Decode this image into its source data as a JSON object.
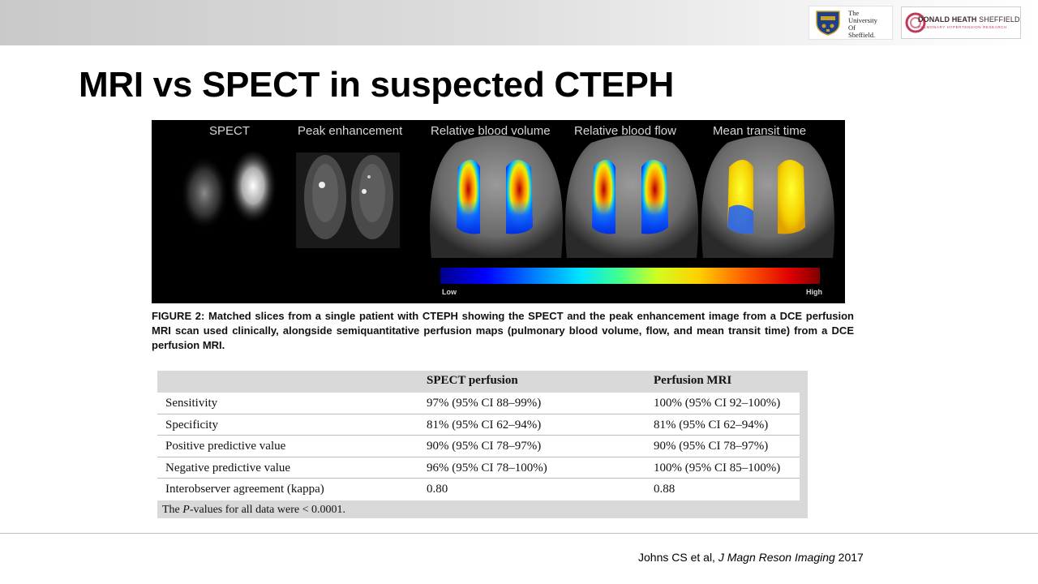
{
  "header": {
    "university_logo_text": "The\nUniversity\nOf\nSheffield.",
    "partner_logo_name_bold": "DONALD HEATH",
    "partner_logo_name_light": " SHEFFIELD",
    "partner_logo_subtitle": "PULMONARY HYPERTENSION RESEARCH"
  },
  "slide": {
    "title": "MRI vs SPECT in suspected CTEPH"
  },
  "figure": {
    "panels": [
      "SPECT",
      "Peak enhancement",
      "Relative blood volume",
      "Relative blood flow",
      "Mean transit time"
    ],
    "colorbar_low": "Low",
    "colorbar_high": "High",
    "caption": "FIGURE 2: Matched slices from a single patient with CTEPH showing the SPECT and the peak enhancement image from a DCE perfusion MRI scan used clinically, alongside semiquantitative perfusion maps (pulmonary blood volume, flow, and mean transit time) from a DCE perfusion MRI."
  },
  "table": {
    "headers": [
      "",
      "SPECT perfusion",
      "Perfusion MRI"
    ],
    "rows": [
      {
        "metric": "Sensitivity",
        "spect": "97% (95% CI 88–99%)",
        "mri": "100% (95% CI 92–100%)"
      },
      {
        "metric": "Specificity",
        "spect": "81% (95% CI 62–94%)",
        "mri": "81% (95% CI 62–94%)"
      },
      {
        "metric": "Positive predictive value",
        "spect": "90% (95% CI 78–97%)",
        "mri": "90% (95% CI 78–97%)"
      },
      {
        "metric": "Negative predictive value",
        "spect": "96% (95% CI 78–100%)",
        "mri": "100% (95% CI 85–100%)"
      },
      {
        "metric": "Interobserver agreement (kappa)",
        "spect": "0.80",
        "mri": "0.88"
      }
    ],
    "note_prefix": "The ",
    "note_italic": "P",
    "note_suffix": "-values for all data were < 0.0001."
  },
  "citation": {
    "authors": "Johns CS et al, ",
    "journal": "J Magn Reson Imaging",
    "year": " 2017"
  },
  "colors": {
    "accent_red": "#c0395a",
    "figure_background": "#000000",
    "table_header_bg": "#d9d9d9"
  }
}
